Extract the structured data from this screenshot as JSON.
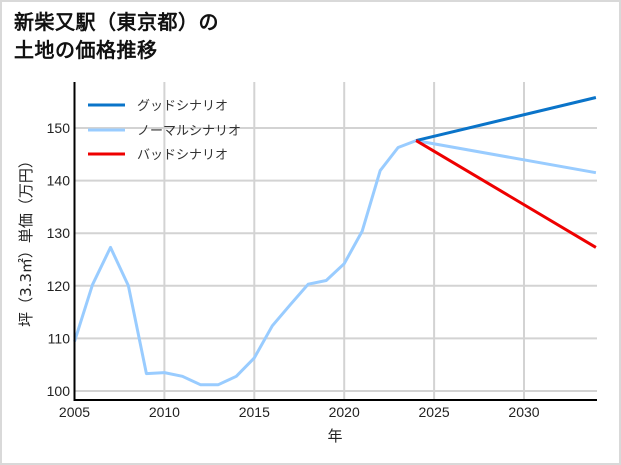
{
  "title": {
    "line1": "新柴又駅（東京都）の",
    "line2": "土地の価格推移"
  },
  "chart_data": {
    "type": "line",
    "title": "新柴又駅（東京都）の土地の価格推移",
    "xlabel": "年",
    "ylabel": "坪（3.3㎡）単価（万円）",
    "xlim": [
      2005,
      2034
    ],
    "ylim": [
      98.5,
      158.5
    ],
    "xticks": [
      2005,
      2010,
      2015,
      2020,
      2025,
      2030
    ],
    "yticks": [
      100,
      110,
      120,
      130,
      140,
      150
    ],
    "grid": true,
    "legend_position": "upper left",
    "series": [
      {
        "name": "グッドシナリオ",
        "color": "#0a74c9",
        "x": [
          2024,
          2034
        ],
        "values": [
          147.6,
          155.8
        ]
      },
      {
        "name": "ノーマルシナリオ",
        "color": "#99ccff",
        "x": [
          2005,
          2006,
          2007,
          2008,
          2009,
          2010,
          2011,
          2012,
          2013,
          2014,
          2015,
          2016,
          2017,
          2018,
          2019,
          2020,
          2021,
          2022,
          2023,
          2024,
          2034
        ],
        "values": [
          109.4,
          120.2,
          127.3,
          120.0,
          103.3,
          103.5,
          102.8,
          101.2,
          101.2,
          102.8,
          106.3,
          112.4,
          116.4,
          120.3,
          121.0,
          124.2,
          130.4,
          141.9,
          146.3,
          147.6,
          141.5
        ]
      },
      {
        "name": "バッドシナリオ",
        "color": "#ee0000",
        "x": [
          2024,
          2034
        ],
        "values": [
          147.6,
          127.3
        ]
      }
    ]
  }
}
